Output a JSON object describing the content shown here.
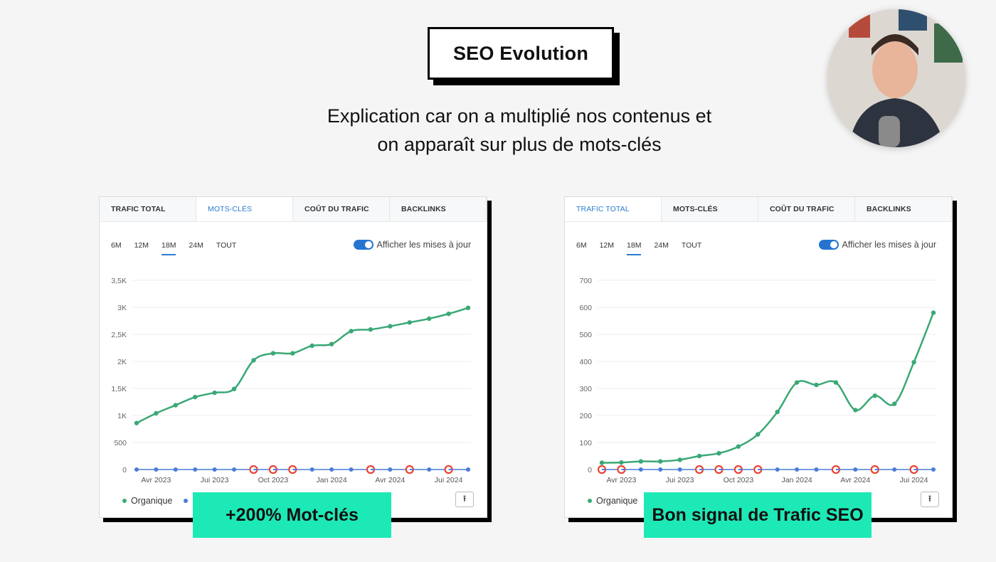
{
  "header": {
    "title": "SEO Evolution",
    "subtitle_line1": "Explication car on a multiplié nos contenus et",
    "subtitle_line2": "on apparaît sur plus de mots-clés"
  },
  "left_panel": {
    "tabs": [
      "TRAFIC TOTAL",
      "MOTS-CLÉS",
      "COÛT DU TRAFIC",
      "BACKLINKS"
    ],
    "active_tab": 1,
    "periods": [
      "6M",
      "12M",
      "18M",
      "24M",
      "TOUT"
    ],
    "active_period": 2,
    "toggle_label": "Afficher les mises à jour",
    "legend_label": "Organique",
    "badge": "+200% Mot-clés"
  },
  "right_panel": {
    "tabs": [
      "TRAFIC TOTAL",
      "MOTS-CLÉS",
      "COÛT DU TRAFIC",
      "BACKLINKS"
    ],
    "active_tab": 0,
    "periods": [
      "6M",
      "12M",
      "18M",
      "24M",
      "TOUT"
    ],
    "active_period": 2,
    "toggle_label": "Afficher les mises à jour",
    "legend_label": "Organique",
    "badge": "Bon signal de Trafic SEO"
  },
  "colors": {
    "line": "#3aa876",
    "baseline": "#4a7bd8",
    "accent": "#2b7bd1",
    "badge": "#1de9b6"
  },
  "chart_data": [
    {
      "type": "line",
      "title": "",
      "y_ticks": [
        "0",
        "500",
        "1K",
        "1,5K",
        "2K",
        "2,5K",
        "3K",
        "3,5K"
      ],
      "ylim": [
        0,
        3500
      ],
      "x_ticks": [
        "Avr 2023",
        "Jui 2023",
        "Oct 2023",
        "Jan 2024",
        "Avr 2024",
        "Jui 2024"
      ],
      "series": [
        {
          "name": "Organique",
          "values": [
            860,
            1040,
            1190,
            1340,
            1420,
            1490,
            2020,
            2150,
            2150,
            2290,
            2320,
            2560,
            2590,
            2650,
            2720,
            2790,
            2880,
            2990
          ]
        }
      ],
      "google_update_indices": [
        6,
        7,
        8,
        12,
        14,
        16
      ]
    },
    {
      "type": "line",
      "title": "",
      "y_ticks": [
        "0",
        "100",
        "200",
        "300",
        "400",
        "500",
        "600",
        "700"
      ],
      "ylim": [
        0,
        700
      ],
      "x_ticks": [
        "Avr 2023",
        "Jui 2023",
        "Oct 2023",
        "Jan 2024",
        "Avr 2024",
        "Jui 2024"
      ],
      "series": [
        {
          "name": "Organique",
          "values": [
            25,
            26,
            30,
            30,
            36,
            50,
            60,
            85,
            130,
            213,
            322,
            313,
            322,
            220,
            273,
            243,
            397,
            580
          ]
        }
      ],
      "google_update_indices": [
        0,
        1,
        5,
        6,
        7,
        8,
        12,
        14,
        16
      ]
    }
  ]
}
